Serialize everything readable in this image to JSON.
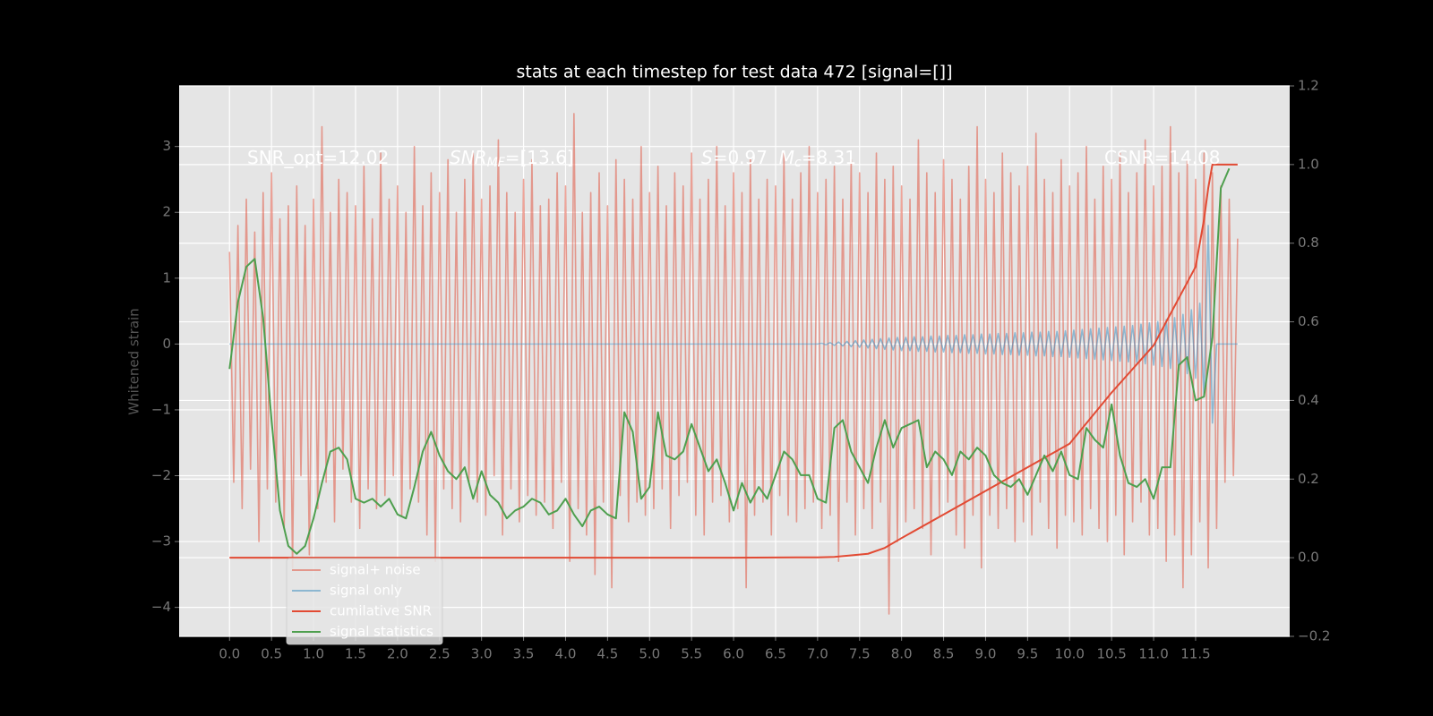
{
  "chart_data": {
    "type": "line",
    "title": "stats at each timestep for test data 472 [signal=[]]",
    "ylabel": "Whitened strain",
    "annotations": [
      {
        "segments": [
          {
            "text": "SNR_opt=12.02"
          }
        ]
      },
      {
        "segments": [
          {
            "text": "SNR",
            "italic": true
          },
          {
            "text": "MF",
            "italic": true,
            "sub": true
          },
          {
            "text": "=[13.6]"
          }
        ]
      },
      {
        "segments": [
          {
            "text": "S",
            "italic": true
          },
          {
            "text": "=0.97  "
          },
          {
            "text": "M",
            "italic": true
          },
          {
            "text": "c",
            "italic": true,
            "sub": true
          },
          {
            "text": "=8.31"
          }
        ]
      },
      {
        "segments": [
          {
            "text": "CSNR=14.08"
          }
        ]
      }
    ],
    "xlim": [
      -0.6,
      12.62
    ],
    "ylim": [
      -4.44,
      3.92
    ],
    "y2lim": [
      -0.2,
      1.2
    ],
    "xticks": [
      {
        "value": 0,
        "label": "0.0"
      },
      0.5,
      {
        "value": 1,
        "label": "1.0"
      },
      1.5,
      {
        "value": 2,
        "label": "2.0"
      },
      2.5,
      {
        "value": 3,
        "label": "3.0"
      },
      3.5,
      {
        "value": 4,
        "label": "4.0"
      },
      4.5,
      {
        "value": 5,
        "label": "5.0"
      },
      5.5,
      {
        "value": 6,
        "label": "6.0"
      },
      6.5,
      {
        "value": 7,
        "label": "7.0"
      },
      7.5,
      {
        "value": 8,
        "label": "8.0"
      },
      8.5,
      {
        "value": 9,
        "label": "9.0"
      },
      9.5,
      {
        "value": 10,
        "label": "10.0"
      },
      10.5,
      {
        "value": 11,
        "label": "11.0"
      },
      11.5
    ],
    "yticks": [
      {
        "value": -4,
        "label": "−4"
      },
      {
        "value": -3,
        "label": "−3"
      },
      {
        "value": -2,
        "label": "−2"
      },
      {
        "value": -1,
        "label": "−1"
      },
      0,
      1,
      2,
      3
    ],
    "y2ticks": [
      {
        "value": -0.2,
        "label": "−0.2"
      },
      {
        "value": 0,
        "label": "0.0"
      },
      0.2,
      0.4,
      0.6,
      0.8,
      {
        "value": 1,
        "label": "1.0"
      },
      1.2
    ],
    "grid": true,
    "legend": "lower left",
    "series": [
      {
        "name": "signal+ noise",
        "color": "#E24A33",
        "alpha": 0.5,
        "axis": "y",
        "x": [
          0,
          0.05,
          0.1,
          0.15,
          0.2,
          0.25,
          0.3,
          0.35,
          0.4,
          0.45,
          0.5,
          0.55,
          0.6,
          0.65,
          0.7,
          0.75,
          0.8,
          0.85,
          0.9,
          0.95,
          1,
          1.05,
          1.1,
          1.15,
          1.2,
          1.25,
          1.3,
          1.35,
          1.4,
          1.45,
          1.5,
          1.55,
          1.6,
          1.65,
          1.7,
          1.75,
          1.8,
          1.85,
          1.9,
          1.95,
          2,
          2.05,
          2.1,
          2.15,
          2.2,
          2.25,
          2.3,
          2.35,
          2.4,
          2.45,
          2.5,
          2.55,
          2.6,
          2.65,
          2.7,
          2.75,
          2.8,
          2.85,
          2.9,
          2.95,
          3,
          3.05,
          3.1,
          3.15,
          3.2,
          3.25,
          3.3,
          3.35,
          3.4,
          3.45,
          3.5,
          3.55,
          3.6,
          3.65,
          3.7,
          3.75,
          3.8,
          3.85,
          3.9,
          3.95,
          4,
          4.05,
          4.1,
          4.15,
          4.2,
          4.25,
          4.3,
          4.35,
          4.4,
          4.45,
          4.5,
          4.55,
          4.6,
          4.65,
          4.7,
          4.75,
          4.8,
          4.85,
          4.9,
          4.95,
          5,
          5.05,
          5.1,
          5.15,
          5.2,
          5.25,
          5.3,
          5.35,
          5.4,
          5.45,
          5.5,
          5.55,
          5.6,
          5.65,
          5.7,
          5.75,
          5.8,
          5.85,
          5.9,
          5.95,
          6,
          6.05,
          6.1,
          6.15,
          6.2,
          6.25,
          6.3,
          6.35,
          6.4,
          6.45,
          6.5,
          6.55,
          6.6,
          6.65,
          6.7,
          6.75,
          6.8,
          6.85,
          6.9,
          6.95,
          7,
          7.05,
          7.1,
          7.15,
          7.2,
          7.25,
          7.3,
          7.35,
          7.4,
          7.45,
          7.5,
          7.55,
          7.6,
          7.65,
          7.7,
          7.75,
          7.8,
          7.85,
          7.9,
          7.95,
          8,
          8.05,
          8.1,
          8.15,
          8.2,
          8.25,
          8.3,
          8.35,
          8.4,
          8.45,
          8.5,
          8.55,
          8.6,
          8.65,
          8.7,
          8.75,
          8.8,
          8.85,
          8.9,
          8.95,
          9,
          9.05,
          9.1,
          9.15,
          9.2,
          9.25,
          9.3,
          9.35,
          9.4,
          9.45,
          9.5,
          9.55,
          9.6,
          9.65,
          9.7,
          9.75,
          9.8,
          9.85,
          9.9,
          9.95,
          10,
          10.05,
          10.1,
          10.15,
          10.2,
          10.25,
          10.3,
          10.35,
          10.4,
          10.45,
          10.5,
          10.55,
          10.6,
          10.65,
          10.7,
          10.75,
          10.8,
          10.85,
          10.9,
          10.95,
          11,
          11.05,
          11.1,
          11.15,
          11.2,
          11.25,
          11.3,
          11.35,
          11.4,
          11.45,
          11.5,
          11.55,
          11.6,
          11.65,
          11.7,
          11.75,
          11.8,
          11.85,
          11.9,
          11.95,
          12
        ],
        "values": [
          1.4,
          -2.1,
          1.8,
          -2.5,
          2.2,
          -1.9,
          1.7,
          -3.0,
          2.3,
          -2.2,
          2.6,
          -2.4,
          1.9,
          -2.8,
          2.1,
          -3.4,
          2.4,
          -2.0,
          1.8,
          -3.2,
          2.2,
          -2.5,
          3.3,
          -2.1,
          2.0,
          -2.7,
          2.5,
          -1.9,
          2.3,
          -2.4,
          2.1,
          -2.8,
          2.7,
          -2.2,
          1.9,
          -2.5,
          2.9,
          -2.3,
          2.2,
          -2.0,
          2.4,
          -2.6,
          2.0,
          -2.2,
          3.0,
          -2.4,
          2.1,
          -2.9,
          2.6,
          -3.3,
          2.3,
          -2.2,
          2.8,
          -2.5,
          2.0,
          -2.7,
          2.5,
          -2.1,
          2.9,
          -2.4,
          2.2,
          -2.6,
          2.4,
          -2.0,
          3.1,
          -2.9,
          2.3,
          -2.2,
          2.0,
          -2.7,
          2.5,
          -2.3,
          2.8,
          -2.6,
          2.1,
          -2.4,
          2.2,
          -2.8,
          2.6,
          -2.1,
          2.4,
          -3.3,
          3.5,
          -2.5,
          2.0,
          -2.9,
          2.3,
          -3.5,
          2.6,
          -2.4,
          2.1,
          -3.7,
          2.8,
          -2.3,
          2.5,
          -2.7,
          2.2,
          -2.4,
          3.0,
          -2.6,
          2.3,
          -2.5,
          2.7,
          -2.2,
          2.1,
          -2.8,
          2.6,
          -2.3,
          2.4,
          -2.1,
          2.9,
          -2.6,
          2.2,
          -2.9,
          2.5,
          -2.4,
          3.0,
          -2.3,
          2.1,
          -2.7,
          2.6,
          -2.5,
          2.3,
          -3.7,
          2.8,
          -2.6,
          2.2,
          -2.4,
          2.5,
          -2.9,
          2.4,
          -2.3,
          2.9,
          -2.6,
          2.2,
          -2.7,
          2.6,
          -2.5,
          3.0,
          -2.4,
          2.3,
          -2.8,
          2.5,
          -2.6,
          2.7,
          -3.3,
          2.2,
          -2.4,
          2.8,
          -2.9,
          2.6,
          -2.5,
          2.3,
          -2.8,
          2.9,
          -2.4,
          2.5,
          -4.1,
          2.7,
          -3.0,
          2.4,
          -2.7,
          2.2,
          -2.5,
          3.1,
          -2.8,
          2.6,
          -3.2,
          2.3,
          -2.6,
          2.8,
          -2.4,
          2.5,
          -2.9,
          2.2,
          -3.1,
          2.7,
          -2.6,
          3.3,
          -3.4,
          2.5,
          -2.6,
          2.3,
          -2.8,
          2.9,
          -2.5,
          2.6,
          -3.0,
          2.4,
          -2.7,
          2.7,
          -2.9,
          3.2,
          -2.4,
          2.5,
          -2.8,
          2.3,
          -3.1,
          2.8,
          -2.6,
          2.4,
          -2.7,
          2.6,
          -2.9,
          3.0,
          -2.5,
          2.2,
          -2.8,
          2.7,
          -3.0,
          2.5,
          -2.6,
          2.9,
          -3.2,
          2.3,
          -2.7,
          2.6,
          -2.4,
          3.1,
          -2.9,
          2.4,
          -2.8,
          2.7,
          -3.3,
          3.3,
          -2.9,
          2.6,
          -3.7,
          2.8,
          -3.2,
          2.5,
          -2.7,
          2.9,
          -3.4,
          2.6,
          -2.8,
          2.4,
          -2.1,
          2.2,
          -2.0,
          1.6
        ]
      },
      {
        "name": "signal only",
        "color": "#348ABD",
        "alpha": 0.5,
        "axis": "y",
        "x": [
          0,
          0.5,
          1,
          1.5,
          2,
          2.5,
          3,
          3.5,
          4,
          4.5,
          5,
          5.5,
          6,
          6.5,
          7,
          7.05,
          7.1,
          7.15,
          7.2,
          7.25,
          7.3,
          7.35,
          7.4,
          7.45,
          7.5,
          7.55,
          7.6,
          7.65,
          7.7,
          7.75,
          7.8,
          7.85,
          7.9,
          7.95,
          8,
          8.05,
          8.1,
          8.15,
          8.2,
          8.25,
          8.3,
          8.35,
          8.4,
          8.45,
          8.5,
          8.55,
          8.6,
          8.65,
          8.7,
          8.75,
          8.8,
          8.85,
          8.9,
          8.95,
          9,
          9.05,
          9.1,
          9.15,
          9.2,
          9.25,
          9.3,
          9.35,
          9.4,
          9.45,
          9.5,
          9.55,
          9.6,
          9.65,
          9.7,
          9.75,
          9.8,
          9.85,
          9.9,
          9.95,
          10,
          10.05,
          10.1,
          10.15,
          10.2,
          10.25,
          10.3,
          10.35,
          10.4,
          10.45,
          10.5,
          10.55,
          10.6,
          10.65,
          10.7,
          10.75,
          10.8,
          10.85,
          10.9,
          10.95,
          11,
          11.05,
          11.1,
          11.15,
          11.2,
          11.25,
          11.3,
          11.35,
          11.4,
          11.45,
          11.5,
          11.55,
          11.6,
          11.65,
          11.7,
          11.75,
          12
        ],
        "values": [
          0,
          0,
          0,
          0,
          0,
          0,
          0,
          0,
          0,
          0,
          0,
          0,
          0,
          0,
          0,
          0.01,
          -0.01,
          0.02,
          -0.02,
          0.03,
          -0.03,
          0.04,
          -0.04,
          0.05,
          -0.05,
          0.06,
          -0.06,
          0.07,
          -0.07,
          0.08,
          -0.08,
          0.09,
          -0.09,
          0.1,
          -0.1,
          0.1,
          -0.1,
          0.11,
          -0.11,
          0.11,
          -0.11,
          0.12,
          -0.12,
          0.12,
          -0.12,
          0.13,
          -0.13,
          0.13,
          -0.13,
          0.14,
          -0.14,
          0.14,
          -0.14,
          0.15,
          -0.15,
          0.15,
          -0.15,
          0.16,
          -0.16,
          0.16,
          -0.16,
          0.17,
          -0.17,
          0.17,
          -0.17,
          0.18,
          -0.18,
          0.18,
          -0.18,
          0.19,
          -0.19,
          0.19,
          -0.19,
          0.2,
          -0.2,
          0.21,
          -0.21,
          0.22,
          -0.22,
          0.23,
          -0.23,
          0.24,
          -0.24,
          0.25,
          -0.25,
          0.26,
          -0.26,
          0.27,
          -0.27,
          0.28,
          -0.28,
          0.3,
          -0.3,
          0.32,
          -0.32,
          0.34,
          -0.34,
          0.37,
          -0.37,
          0.4,
          -0.4,
          0.45,
          -0.45,
          0.52,
          -0.52,
          0.62,
          -0.8,
          1.8,
          -1.2,
          0,
          0
        ]
      },
      {
        "name": "cumilative SNR",
        "color": "#E24A33",
        "alpha": 1,
        "axis": "y2",
        "x": [
          0,
          1,
          2,
          3,
          4,
          5,
          6,
          7,
          7.2,
          7.6,
          7.8,
          8.0,
          8.5,
          9.0,
          9.5,
          10.0,
          10.5,
          11.0,
          11.3,
          11.5,
          11.6,
          11.65,
          11.7,
          12.0
        ],
        "values": [
          0,
          0,
          0,
          0,
          0,
          0,
          0,
          0.001,
          0.002,
          0.01,
          0.025,
          0.05,
          0.11,
          0.17,
          0.23,
          0.29,
          0.42,
          0.54,
          0.66,
          0.74,
          0.86,
          0.94,
          1.0,
          1.0
        ]
      },
      {
        "name": "signal statistics",
        "color": "#4e9f4e",
        "alpha": 1,
        "axis": "y2",
        "x": [
          0,
          0.1,
          0.2,
          0.3,
          0.4,
          0.5,
          0.6,
          0.7,
          0.8,
          0.9,
          1,
          1.1,
          1.2,
          1.3,
          1.4,
          1.5,
          1.6,
          1.7,
          1.8,
          1.9,
          2,
          2.1,
          2.2,
          2.3,
          2.4,
          2.5,
          2.6,
          2.7,
          2.8,
          2.9,
          3,
          3.1,
          3.2,
          3.3,
          3.4,
          3.5,
          3.6,
          3.7,
          3.8,
          3.9,
          4,
          4.1,
          4.2,
          4.3,
          4.4,
          4.5,
          4.6,
          4.7,
          4.8,
          4.9,
          5,
          5.1,
          5.2,
          5.3,
          5.4,
          5.5,
          5.6,
          5.7,
          5.8,
          5.9,
          6,
          6.1,
          6.2,
          6.3,
          6.4,
          6.5,
          6.6,
          6.7,
          6.8,
          6.9,
          7,
          7.1,
          7.2,
          7.3,
          7.4,
          7.5,
          7.6,
          7.7,
          7.8,
          7.9,
          8,
          8.1,
          8.2,
          8.3,
          8.4,
          8.5,
          8.6,
          8.7,
          8.8,
          8.9,
          9,
          9.1,
          9.2,
          9.3,
          9.4,
          9.5,
          9.6,
          9.7,
          9.8,
          9.9,
          10,
          10.1,
          10.2,
          10.3,
          10.4,
          10.5,
          10.6,
          10.7,
          10.8,
          10.9,
          11,
          11.1,
          11.2,
          11.3,
          11.4,
          11.5,
          11.6,
          11.7,
          11.8,
          11.9
        ],
        "values": [
          0.48,
          0.65,
          0.74,
          0.76,
          0.61,
          0.35,
          0.12,
          0.03,
          0.01,
          0.03,
          0.1,
          0.19,
          0.27,
          0.28,
          0.25,
          0.15,
          0.14,
          0.15,
          0.13,
          0.15,
          0.11,
          0.1,
          0.18,
          0.27,
          0.32,
          0.26,
          0.22,
          0.2,
          0.23,
          0.15,
          0.22,
          0.16,
          0.14,
          0.1,
          0.12,
          0.13,
          0.15,
          0.14,
          0.11,
          0.12,
          0.15,
          0.11,
          0.08,
          0.12,
          0.13,
          0.11,
          0.1,
          0.37,
          0.32,
          0.15,
          0.18,
          0.37,
          0.26,
          0.25,
          0.27,
          0.34,
          0.28,
          0.22,
          0.25,
          0.19,
          0.12,
          0.19,
          0.14,
          0.18,
          0.15,
          0.21,
          0.27,
          0.25,
          0.21,
          0.21,
          0.15,
          0.14,
          0.33,
          0.35,
          0.27,
          0.23,
          0.19,
          0.28,
          0.35,
          0.28,
          0.33,
          0.34,
          0.35,
          0.23,
          0.27,
          0.25,
          0.21,
          0.27,
          0.25,
          0.28,
          0.26,
          0.21,
          0.19,
          0.18,
          0.2,
          0.16,
          0.21,
          0.26,
          0.22,
          0.27,
          0.21,
          0.2,
          0.33,
          0.3,
          0.28,
          0.39,
          0.26,
          0.19,
          0.18,
          0.2,
          0.15,
          0.23,
          0.23,
          0.49,
          0.51,
          0.4,
          0.41,
          0.56,
          0.94,
          0.99
        ]
      }
    ]
  }
}
